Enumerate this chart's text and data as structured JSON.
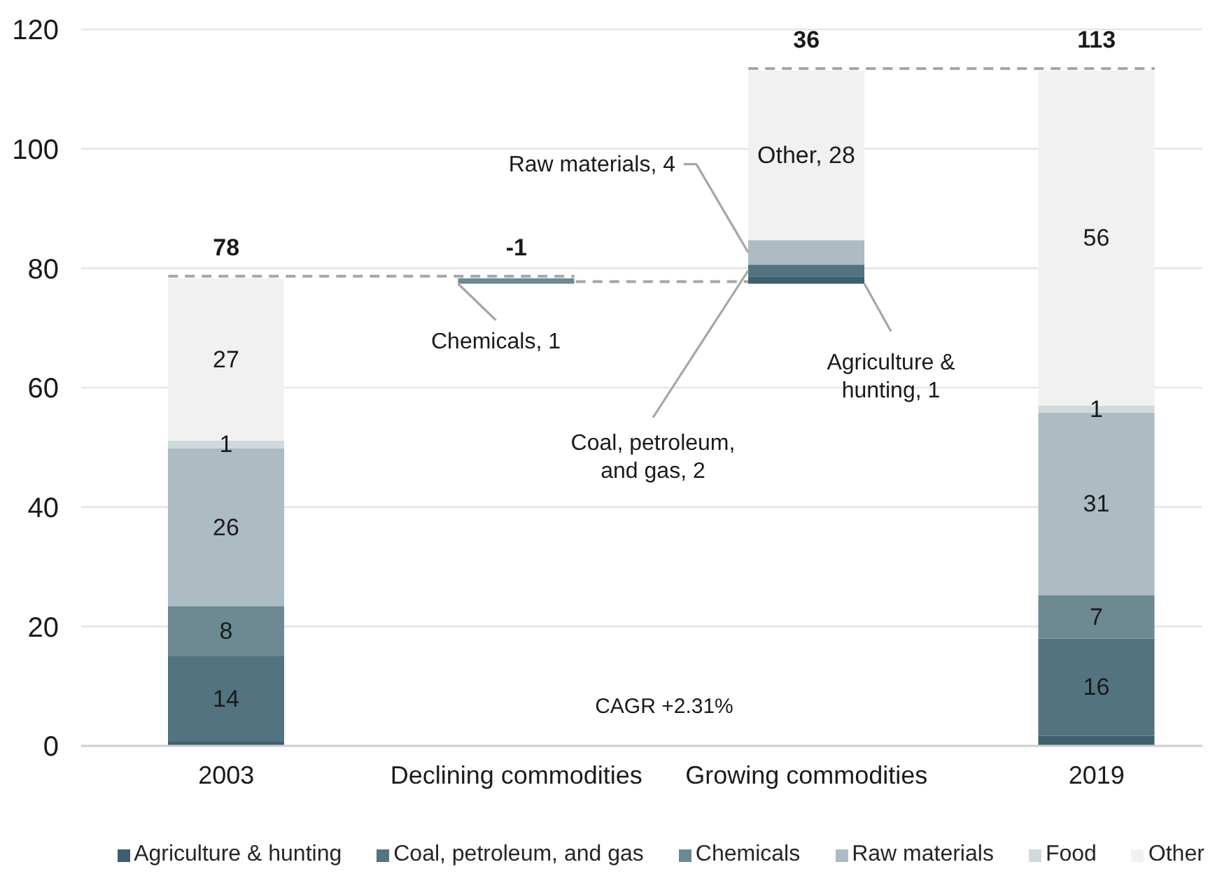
{
  "chart_data": {
    "type": "bar",
    "categories": [
      "2003",
      "Declining commodities",
      "Growing commodities",
      "2019"
    ],
    "series": [
      {
        "name": "Agriculture & hunting",
        "color": "#3d5f6e",
        "values": [
          0.7,
          null,
          1.2,
          1.7
        ],
        "base": [
          0,
          null,
          77.4,
          0
        ],
        "value_labels": [
          null,
          null,
          "Agriculture & hunting, 1",
          null
        ]
      },
      {
        "name": "Coal, petroleum, and gas",
        "color": "#52737f",
        "values": [
          14.3,
          null,
          2,
          16.3
        ],
        "base": [
          0.7,
          null,
          78.6,
          1.7
        ],
        "value_labels": [
          "14",
          null,
          "Coal, petroleum, and gas, 2",
          "16"
        ]
      },
      {
        "name": "Chemicals",
        "color": "#6d8992",
        "values": [
          8.4,
          0.9,
          null,
          7.2
        ],
        "base": [
          15,
          77.4,
          null,
          18
        ],
        "value_labels": [
          "8",
          "Chemicals, 1",
          null,
          "7"
        ]
      },
      {
        "name": "Raw materials",
        "color": "#adbbc2",
        "values": [
          26.4,
          null,
          4.1,
          30.6
        ],
        "base": [
          23.4,
          null,
          80.6,
          25.2
        ],
        "value_labels": [
          "26",
          null,
          "Raw materials, 4",
          "31"
        ]
      },
      {
        "name": "Food",
        "color": "#d0d9dc",
        "values": [
          1.3,
          null,
          null,
          1.2
        ],
        "base": [
          49.8,
          null,
          null,
          55.8
        ],
        "value_labels": [
          "1",
          null,
          null,
          "1"
        ]
      },
      {
        "name": "Other",
        "color": "#f1f1f1",
        "values": [
          27.2,
          null,
          28.4,
          56.1
        ],
        "base": [
          51.1,
          null,
          84.7,
          57
        ],
        "value_labels": [
          "27",
          null,
          "Other, 28",
          "56"
        ]
      }
    ],
    "totals": [
      "78",
      "-1",
      "36",
      "113"
    ],
    "ylim": [
      0,
      120
    ],
    "yticks": [
      0,
      20,
      40,
      60,
      80,
      100,
      120
    ],
    "grid": "y",
    "legend": "bottom",
    "annotations": [
      "CAGR +2.31%"
    ]
  }
}
